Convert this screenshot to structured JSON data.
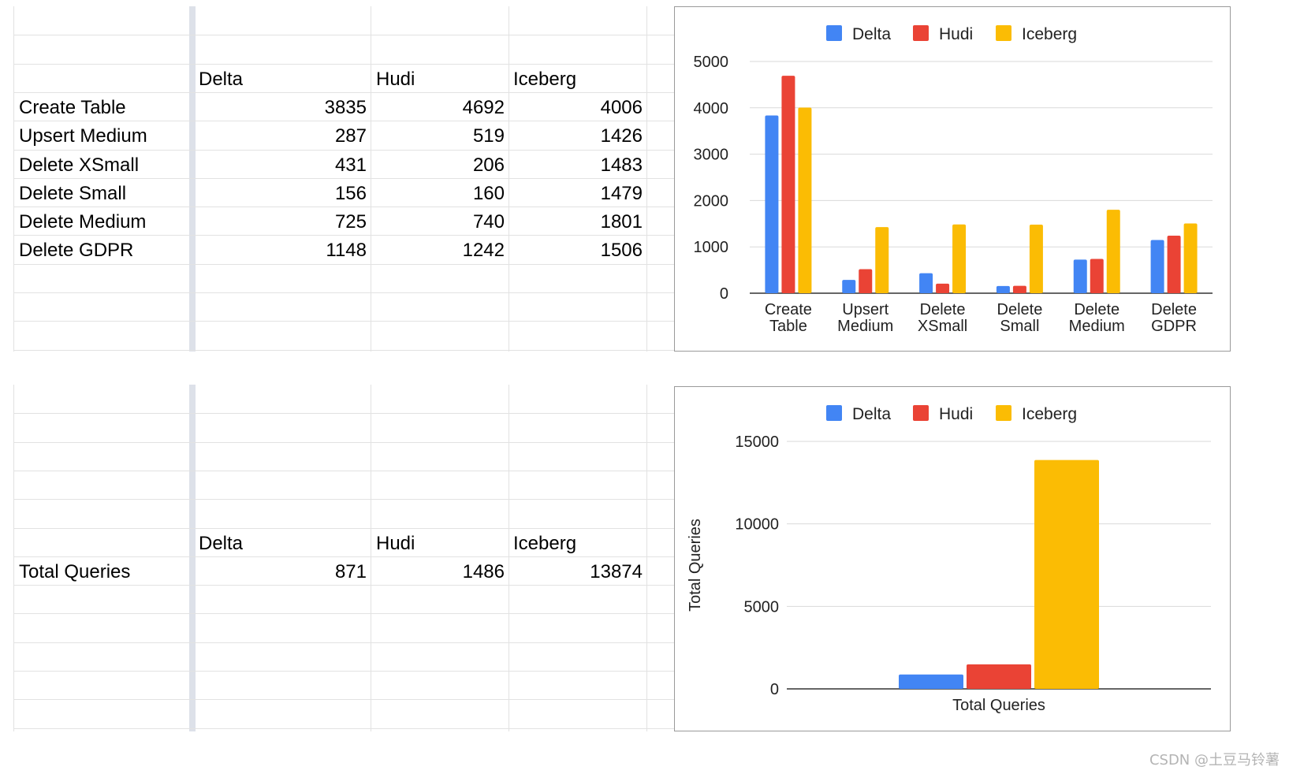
{
  "colors": {
    "delta": "#4285f4",
    "hudi": "#ea4335",
    "iceberg": "#fbbc04",
    "grid": "#d9d9d9",
    "axis": "#333333"
  },
  "table1": {
    "headers": [
      "Delta",
      "Hudi",
      "Iceberg"
    ],
    "rows": [
      {
        "label": "Create Table",
        "values": [
          "3835",
          "4692",
          "4006"
        ]
      },
      {
        "label": "Upsert Medium",
        "values": [
          "287",
          "519",
          "1426"
        ]
      },
      {
        "label": "Delete XSmall",
        "values": [
          "431",
          "206",
          "1483"
        ]
      },
      {
        "label": "Delete Small",
        "values": [
          "156",
          "160",
          "1479"
        ]
      },
      {
        "label": "Delete Medium",
        "values": [
          "725",
          "740",
          "1801"
        ]
      },
      {
        "label": "Delete GDPR",
        "values": [
          "1148",
          "1242",
          "1506"
        ]
      }
    ]
  },
  "table2": {
    "headers": [
      "Delta",
      "Hudi",
      "Iceberg"
    ],
    "rows": [
      {
        "label": "Total Queries",
        "values": [
          "871",
          "1486",
          "13874"
        ]
      }
    ]
  },
  "chart_data": [
    {
      "type": "bar",
      "categories": [
        [
          "Create",
          "Table"
        ],
        [
          "Upsert",
          "Medium"
        ],
        [
          "Delete",
          "XSmall"
        ],
        [
          "Delete",
          "Small"
        ],
        [
          "Delete",
          "Medium"
        ],
        [
          "Delete",
          "GDPR"
        ]
      ],
      "series": [
        {
          "name": "Delta",
          "values": [
            3835,
            287,
            431,
            156,
            725,
            1148
          ]
        },
        {
          "name": "Hudi",
          "values": [
            4692,
            519,
            206,
            160,
            740,
            1242
          ]
        },
        {
          "name": "Iceberg",
          "values": [
            4006,
            1426,
            1483,
            1479,
            1801,
            1506
          ]
        }
      ],
      "yticks": [
        0,
        1000,
        2000,
        3000,
        4000,
        5000
      ],
      "ylim": [
        0,
        5000
      ],
      "ylabel": "",
      "legend": "top",
      "grid": true
    },
    {
      "type": "bar",
      "categories": [
        [
          "Total Queries"
        ]
      ],
      "series": [
        {
          "name": "Delta",
          "values": [
            871
          ]
        },
        {
          "name": "Hudi",
          "values": [
            1486
          ]
        },
        {
          "name": "Iceberg",
          "values": [
            13874
          ]
        }
      ],
      "yticks": [
        0,
        5000,
        10000,
        15000
      ],
      "ylim": [
        0,
        15000
      ],
      "ylabel": "Total Queries",
      "legend": "top",
      "grid": true
    }
  ],
  "watermark": "CSDN @土豆马铃薯"
}
